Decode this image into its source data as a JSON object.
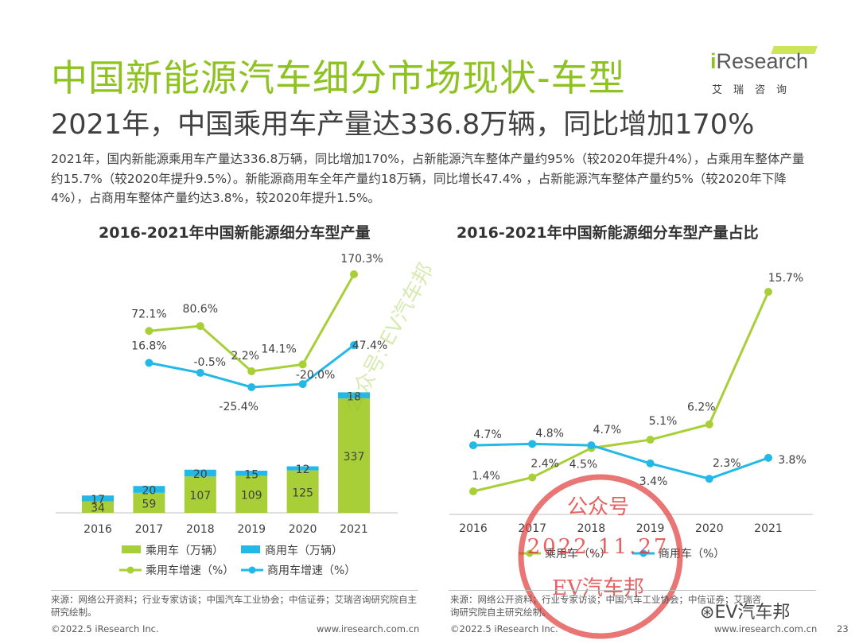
{
  "header": {
    "title": "中国新能源汽车细分市场现状-车型",
    "subtitle": "2021年，中国乘用车产量达336.8万辆，同比增加170%",
    "description": "2021年，国内新能源乘用车产量达336.8万辆，同比增加170%，占新能源汽车整体产量约95%（较2020年提升4%），占乘用车整体产量约15.7%（较2020年提升9.5%）。新能源商用车全年产量约18万辆，同比增长47.4% ，占新能源汽车整体产量约5%（较2020年下降4%），占商用车整体产量约达3.8%，较2020年提升1.5%。"
  },
  "logo": {
    "i": "i",
    "word": "Research",
    "cn": "艾瑞咨询"
  },
  "colors": {
    "green": "#a8cf38",
    "cyan": "#22b8e8",
    "title_green": "#8dc21f",
    "stamp_red": "#e03a3a",
    "watermark_green": "#8dc21f"
  },
  "chart_data": [
    {
      "type": "bar",
      "title": "2016-2021年中国新能源细分车型产量",
      "categories": [
        "2016",
        "2017",
        "2018",
        "2019",
        "2020",
        "2021"
      ],
      "series": [
        {
          "name": "乘用车（万辆）",
          "kind": "stacked-bar",
          "values": [
            34,
            59,
            107,
            109,
            125,
            337
          ],
          "labels": [
            "34",
            "59",
            "107",
            "109",
            "125",
            "337"
          ]
        },
        {
          "name": "商用车（万辆）",
          "kind": "stacked-bar",
          "values": [
            17,
            20,
            20,
            15,
            12,
            18
          ],
          "labels": [
            "17",
            "20",
            "20",
            "15",
            "12",
            "18"
          ]
        },
        {
          "name": "乘用车增速（%）",
          "kind": "line",
          "values": [
            null,
            72.1,
            80.6,
            2.2,
            14.1,
            170.3
          ],
          "labels": [
            "",
            "72.1%",
            "80.6%",
            "2.2%",
            "14.1%",
            "170.3%"
          ]
        },
        {
          "name": "商用车增速（%）",
          "kind": "line",
          "values": [
            null,
            16.8,
            -0.5,
            -25.4,
            -20.0,
            47.4
          ],
          "labels": [
            "",
            "16.8%",
            "-0.5%",
            "-25.4%",
            "-20.0%",
            "47.4%"
          ]
        }
      ],
      "legend": "bottom"
    },
    {
      "type": "line",
      "title": "2016-2021年中国新能源细分车型产量占比",
      "categories": [
        "2016",
        "2017",
        "2018",
        "2019",
        "2020",
        "2021"
      ],
      "series": [
        {
          "name": "乘用车（%）",
          "values": [
            1.4,
            2.4,
            4.5,
            5.1,
            6.2,
            15.7
          ],
          "labels": [
            "1.4%",
            "2.4%",
            "4.5%",
            "5.1%",
            "6.2%",
            "15.7%"
          ]
        },
        {
          "name": "商用车（%）",
          "values": [
            4.7,
            4.8,
            4.7,
            3.4,
            2.3,
            3.8
          ],
          "labels": [
            "4.7%",
            "4.8%",
            "4.7%",
            "3.4%",
            "2.3%",
            "3.8%"
          ]
        }
      ],
      "legend": "bottom"
    }
  ],
  "source_left": "来源：网络公开资料；行业专家访谈；中国汽车工业协会；中信证券；艾瑞咨询研究院自主研究绘制。",
  "source_right": "来源：网络公开资料；行业专家访谈；中国汽车工业协会；中信证券；艾瑞咨询研究院自主研究绘制。",
  "footer": {
    "copyright": "©2022.5 iResearch Inc.",
    "website": "www.iresearch.com.cn",
    "page": "23"
  },
  "stamp": {
    "top": "公众号",
    "date": "2022.11.27",
    "bottom": "EV汽车邦"
  },
  "watermark": {
    "diagonal": "公众号: EV汽车邦",
    "corner": "EV汽车邦"
  }
}
